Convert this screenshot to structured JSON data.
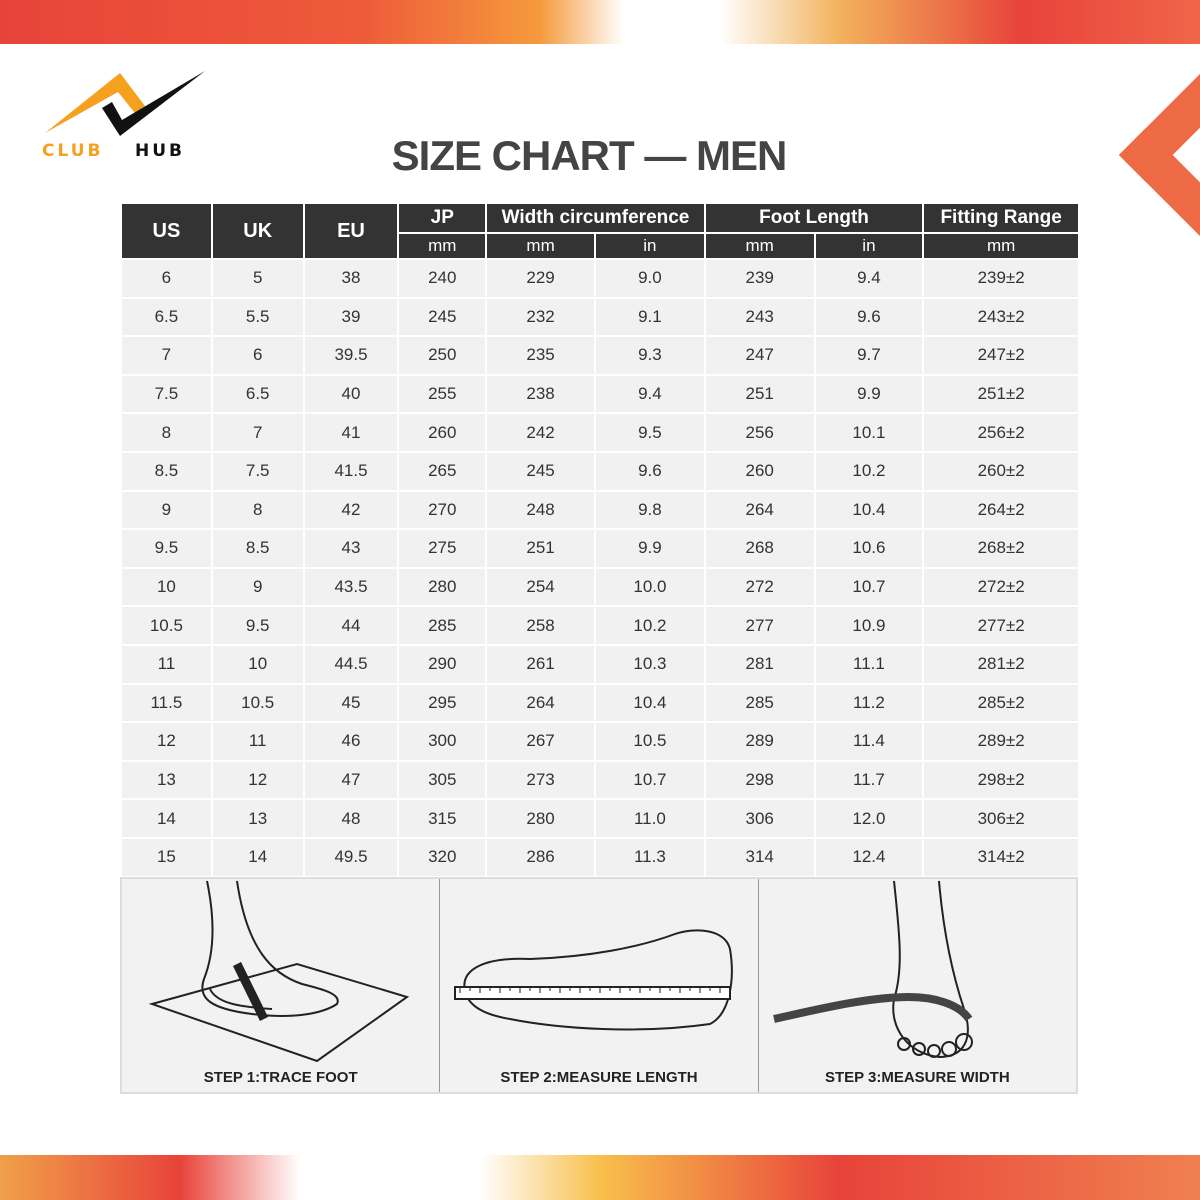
{
  "brand": {
    "name": "CLUB HUB",
    "logo_colors": {
      "orange": "#f5a11d",
      "black": "#111111"
    }
  },
  "title": "SIZE CHART — MEN",
  "accent_colors": {
    "red": "#e8433a",
    "orange": "#f59a3c"
  },
  "table": {
    "headers": {
      "us": "US",
      "uk": "UK",
      "eu": "EU",
      "jp": "JP",
      "width": "Width circumference",
      "foot": "Foot Length",
      "fit": "Fitting Range"
    },
    "units": [
      "mm",
      "mm",
      "in",
      "mm",
      "in",
      "mm"
    ],
    "rows": [
      [
        "6",
        "5",
        "38",
        "240",
        "229",
        "9.0",
        "239",
        "9.4",
        "239±2"
      ],
      [
        "6.5",
        "5.5",
        "39",
        "245",
        "232",
        "9.1",
        "243",
        "9.6",
        "243±2"
      ],
      [
        "7",
        "6",
        "39.5",
        "250",
        "235",
        "9.3",
        "247",
        "9.7",
        "247±2"
      ],
      [
        "7.5",
        "6.5",
        "40",
        "255",
        "238",
        "9.4",
        "251",
        "9.9",
        "251±2"
      ],
      [
        "8",
        "7",
        "41",
        "260",
        "242",
        "9.5",
        "256",
        "10.1",
        "256±2"
      ],
      [
        "8.5",
        "7.5",
        "41.5",
        "265",
        "245",
        "9.6",
        "260",
        "10.2",
        "260±2"
      ],
      [
        "9",
        "8",
        "42",
        "270",
        "248",
        "9.8",
        "264",
        "10.4",
        "264±2"
      ],
      [
        "9.5",
        "8.5",
        "43",
        "275",
        "251",
        "9.9",
        "268",
        "10.6",
        "268±2"
      ],
      [
        "10",
        "9",
        "43.5",
        "280",
        "254",
        "10.0",
        "272",
        "10.7",
        "272±2"
      ],
      [
        "10.5",
        "9.5",
        "44",
        "285",
        "258",
        "10.2",
        "277",
        "10.9",
        "277±2"
      ],
      [
        "11",
        "10",
        "44.5",
        "290",
        "261",
        "10.3",
        "281",
        "11.1",
        "281±2"
      ],
      [
        "11.5",
        "10.5",
        "45",
        "295",
        "264",
        "10.4",
        "285",
        "11.2",
        "285±2"
      ],
      [
        "12",
        "11",
        "46",
        "300",
        "267",
        "10.5",
        "289",
        "11.4",
        "289±2"
      ],
      [
        "13",
        "12",
        "47",
        "305",
        "273",
        "10.7",
        "298",
        "11.7",
        "298±2"
      ],
      [
        "14",
        "13",
        "48",
        "315",
        "280",
        "11.0",
        "306",
        "12.0",
        "306±2"
      ],
      [
        "15",
        "14",
        "49.5",
        "320",
        "286",
        "11.3",
        "314",
        "12.4",
        "314±2"
      ]
    ]
  },
  "steps": [
    "STEP 1:TRACE FOOT",
    "STEP 2:MEASURE LENGTH",
    "STEP 3:MEASURE WIDTH"
  ]
}
